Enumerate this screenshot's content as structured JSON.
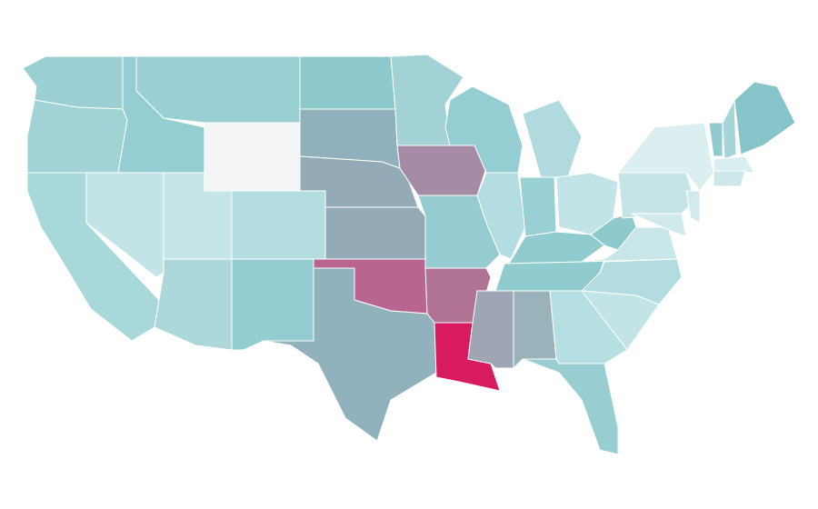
{
  "map": {
    "regions": [
      {
        "color": "#9ccfd3"
      },
      {
        "color": "#a1d3d6"
      },
      {
        "color": "#a9d8da"
      },
      {
        "color": "#c3e4e6"
      },
      {
        "color": "#95ced2"
      },
      {
        "color": "#9acfd3"
      },
      {
        "color": "#f2f4f5"
      },
      {
        "color": "#c5e5e7"
      },
      {
        "color": "#b3dcde"
      },
      {
        "color": "#acd8da"
      },
      {
        "color": "#93cdd1"
      },
      {
        "color": "#8ec9cc"
      },
      {
        "color": "#90b1bb"
      },
      {
        "color": "#94abb7"
      },
      {
        "color": "#94abb7"
      },
      {
        "color": "#b86690"
      },
      {
        "color": "#91b2bd"
      },
      {
        "color": "#a3d2d6"
      },
      {
        "color": "#a68ba5"
      },
      {
        "color": "#95ccd1"
      },
      {
        "color": "#b07393"
      },
      {
        "color": "#d81b60"
      },
      {
        "color": "#9ea6b3"
      },
      {
        "color": "#9ab3bb"
      },
      {
        "color": "#95ced2"
      },
      {
        "color": "#b3dde0"
      },
      {
        "color": "#99d0d3"
      },
      {
        "color": "#b0dadd"
      },
      {
        "color": "#c3e4e6"
      },
      {
        "color": "#8fcbcf"
      },
      {
        "color": "#8fcbcf"
      },
      {
        "color": "#8ecacd"
      },
      {
        "color": "#c8e6e8"
      },
      {
        "color": "#b2dcdf"
      },
      {
        "color": "#c2e4e6"
      },
      {
        "color": "#b6dfe1"
      },
      {
        "color": "#98ced2"
      },
      {
        "color": "#c5e4e6"
      },
      {
        "color": "#dbeef0"
      },
      {
        "color": "#d2eaec"
      },
      {
        "color": "#d0e9eb"
      },
      {
        "color": "#91cbcf"
      },
      {
        "color": "#a5d5d8"
      },
      {
        "color": "#86c4c9"
      },
      {
        "color": "#d8eef0"
      },
      {
        "color": "#cde8ea"
      }
    ]
  }
}
